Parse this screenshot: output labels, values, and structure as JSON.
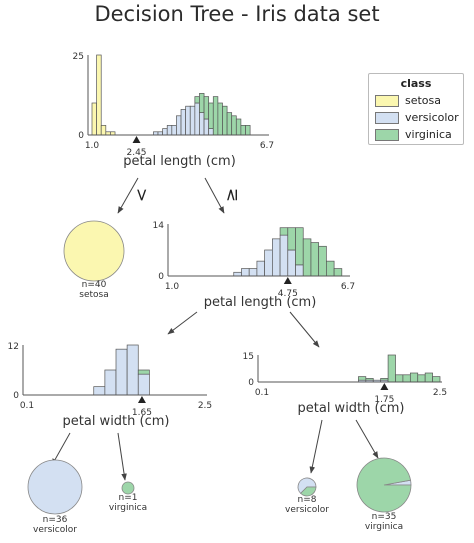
{
  "title": "Decision Tree - Iris data set",
  "colors": {
    "setosa": "#fbf7b0",
    "versicolor": "#d3e0f2",
    "virginica": "#9dd6a9",
    "axis": "#555555"
  },
  "legend": {
    "title": "class",
    "items": [
      {
        "label": "setosa",
        "color": "#fbf7b0"
      },
      {
        "label": "versicolor",
        "color": "#d3e0f2"
      },
      {
        "label": "virginica",
        "color": "#9dd6a9"
      }
    ]
  },
  "edges": {
    "left": "<",
    "right": "≥"
  },
  "nodes": [
    {
      "id": "root",
      "feature": "petal length (cm)",
      "split_label": "2.45",
      "split": 2.45,
      "xmin": 1.0,
      "xmax": 6.7,
      "ymax": 25,
      "xticks": [
        "1.0",
        "6.7"
      ],
      "yticks": [
        "0",
        "25"
      ],
      "bin_width": 0.15,
      "bins": [
        {
          "x": 1.0,
          "setosa": 10,
          "versicolor": 0,
          "virginica": 0
        },
        {
          "x": 1.15,
          "setosa": 25,
          "versicolor": 0,
          "virginica": 0
        },
        {
          "x": 1.3,
          "setosa": 3,
          "versicolor": 0,
          "virginica": 0
        },
        {
          "x": 1.45,
          "setosa": 1,
          "versicolor": 0,
          "virginica": 0
        },
        {
          "x": 1.6,
          "setosa": 1,
          "versicolor": 0,
          "virginica": 0
        },
        {
          "x": 3.0,
          "setosa": 0,
          "versicolor": 1,
          "virginica": 0
        },
        {
          "x": 3.15,
          "setosa": 0,
          "versicolor": 1,
          "virginica": 0
        },
        {
          "x": 3.3,
          "setosa": 0,
          "versicolor": 2,
          "virginica": 0
        },
        {
          "x": 3.45,
          "setosa": 0,
          "versicolor": 3,
          "virginica": 0
        },
        {
          "x": 3.6,
          "setosa": 0,
          "versicolor": 3,
          "virginica": 0
        },
        {
          "x": 3.75,
          "setosa": 0,
          "versicolor": 6,
          "virginica": 0
        },
        {
          "x": 3.9,
          "setosa": 0,
          "versicolor": 8,
          "virginica": 0
        },
        {
          "x": 4.05,
          "setosa": 0,
          "versicolor": 9,
          "virginica": 0
        },
        {
          "x": 4.2,
          "setosa": 0,
          "versicolor": 9,
          "virginica": 0
        },
        {
          "x": 4.35,
          "setosa": 0,
          "versicolor": 10,
          "virginica": 2
        },
        {
          "x": 4.5,
          "setosa": 0,
          "versicolor": 7,
          "virginica": 6
        },
        {
          "x": 4.65,
          "setosa": 0,
          "versicolor": 5,
          "virginica": 7
        },
        {
          "x": 4.8,
          "setosa": 0,
          "versicolor": 2,
          "virginica": 8
        },
        {
          "x": 4.95,
          "setosa": 0,
          "versicolor": 0,
          "virginica": 12
        },
        {
          "x": 5.1,
          "setosa": 0,
          "versicolor": 0,
          "virginica": 10
        },
        {
          "x": 5.25,
          "setosa": 0,
          "versicolor": 0,
          "virginica": 9
        },
        {
          "x": 5.4,
          "setosa": 0,
          "versicolor": 0,
          "virginica": 7
        },
        {
          "x": 5.55,
          "setosa": 0,
          "versicolor": 0,
          "virginica": 6
        },
        {
          "x": 5.7,
          "setosa": 0,
          "versicolor": 0,
          "virginica": 5
        },
        {
          "x": 5.85,
          "setosa": 0,
          "versicolor": 0,
          "virginica": 3
        },
        {
          "x": 6.0,
          "setosa": 0,
          "versicolor": 0,
          "virginica": 3
        }
      ]
    },
    {
      "id": "n2",
      "feature": "petal length (cm)",
      "split_label": "4.75",
      "split": 4.75,
      "xmin": 1.0,
      "xmax": 6.7,
      "ymax": 14,
      "xticks": [
        "1.0",
        "6.7"
      ],
      "yticks": [
        "0",
        "14"
      ],
      "bin_width": 0.25,
      "bins": [
        {
          "x": 3.0,
          "setosa": 0,
          "versicolor": 1,
          "virginica": 0
        },
        {
          "x": 3.25,
          "setosa": 0,
          "versicolor": 2,
          "virginica": 0
        },
        {
          "x": 3.5,
          "setosa": 0,
          "versicolor": 2,
          "virginica": 0
        },
        {
          "x": 3.75,
          "setosa": 0,
          "versicolor": 4,
          "virginica": 0
        },
        {
          "x": 4.0,
          "setosa": 0,
          "versicolor": 7,
          "virginica": 0
        },
        {
          "x": 4.25,
          "setosa": 0,
          "versicolor": 10,
          "virginica": 0
        },
        {
          "x": 4.5,
          "setosa": 0,
          "versicolor": 11,
          "virginica": 2
        },
        {
          "x": 4.75,
          "setosa": 0,
          "versicolor": 7,
          "virginica": 6
        },
        {
          "x": 5.0,
          "setosa": 0,
          "versicolor": 3,
          "virginica": 10
        },
        {
          "x": 5.25,
          "setosa": 0,
          "versicolor": 0,
          "virginica": 10
        },
        {
          "x": 5.5,
          "setosa": 0,
          "versicolor": 0,
          "virginica": 9
        },
        {
          "x": 5.75,
          "setosa": 0,
          "versicolor": 0,
          "virginica": 8
        },
        {
          "x": 6.0,
          "setosa": 0,
          "versicolor": 0,
          "virginica": 4
        },
        {
          "x": 6.25,
          "setosa": 0,
          "versicolor": 0,
          "virginica": 2
        }
      ]
    },
    {
      "id": "n3",
      "feature": "petal width (cm)",
      "split_label": "1.65",
      "split": 1.65,
      "xmin": 0.1,
      "xmax": 2.5,
      "ymax": 12,
      "xticks": [
        "0.1",
        "2.5"
      ],
      "yticks": [
        "0",
        "12"
      ],
      "bin_width": 0.15,
      "bins": [
        {
          "x": 1.0,
          "setosa": 0,
          "versicolor": 2,
          "virginica": 0
        },
        {
          "x": 1.15,
          "setosa": 0,
          "versicolor": 6,
          "virginica": 0
        },
        {
          "x": 1.3,
          "setosa": 0,
          "versicolor": 11,
          "virginica": 0
        },
        {
          "x": 1.45,
          "setosa": 0,
          "versicolor": 12,
          "virginica": 0
        },
        {
          "x": 1.6,
          "setosa": 0,
          "versicolor": 5,
          "virginica": 1
        }
      ]
    },
    {
      "id": "n4",
      "feature": "petal width (cm)",
      "split_label": "1.75",
      "split": 1.75,
      "xmin": 0.1,
      "xmax": 2.5,
      "ymax": 15,
      "xticks": [
        "0.1",
        "2.5"
      ],
      "yticks": [
        "0",
        "15"
      ],
      "bin_width": 0.1,
      "bins": [
        {
          "x": 1.4,
          "setosa": 0,
          "versicolor": 1,
          "virginica": 2
        },
        {
          "x": 1.5,
          "setosa": 0,
          "versicolor": 1,
          "virginica": 1
        },
        {
          "x": 1.6,
          "setosa": 0,
          "versicolor": 1,
          "virginica": 0
        },
        {
          "x": 1.7,
          "setosa": 0,
          "versicolor": 1,
          "virginica": 1
        },
        {
          "x": 1.8,
          "setosa": 0,
          "versicolor": 0,
          "virginica": 15
        },
        {
          "x": 1.9,
          "setosa": 0,
          "versicolor": 0,
          "virginica": 4
        },
        {
          "x": 2.0,
          "setosa": 0,
          "versicolor": 0,
          "virginica": 4
        },
        {
          "x": 2.1,
          "setosa": 0,
          "versicolor": 0,
          "virginica": 5
        },
        {
          "x": 2.2,
          "setosa": 0,
          "versicolor": 0,
          "virginica": 4
        },
        {
          "x": 2.3,
          "setosa": 0,
          "versicolor": 0,
          "virginica": 5
        },
        {
          "x": 2.4,
          "setosa": 0,
          "versicolor": 0,
          "virginica": 3
        }
      ]
    }
  ],
  "leaves": [
    {
      "id": "leaf-setosa",
      "n_label": "n=40",
      "class_label": "setosa",
      "counts": {
        "setosa": 40,
        "versicolor": 0,
        "virginica": 0
      }
    },
    {
      "id": "leaf-versicolor-36",
      "n_label": "n=36",
      "class_label": "versicolor",
      "counts": {
        "setosa": 0,
        "versicolor": 36,
        "virginica": 0
      }
    },
    {
      "id": "leaf-virginica-1",
      "n_label": "n=1",
      "class_label": "virginica",
      "counts": {
        "setosa": 0,
        "versicolor": 0,
        "virginica": 1
      }
    },
    {
      "id": "leaf-versicolor-8",
      "n_label": "n=8",
      "class_label": "versicolor",
      "counts": {
        "setosa": 0,
        "versicolor": 5,
        "virginica": 3
      }
    },
    {
      "id": "leaf-virginica-35",
      "n_label": "n=35",
      "class_label": "virginica",
      "counts": {
        "setosa": 0,
        "versicolor": 1,
        "virginica": 34
      }
    }
  ]
}
